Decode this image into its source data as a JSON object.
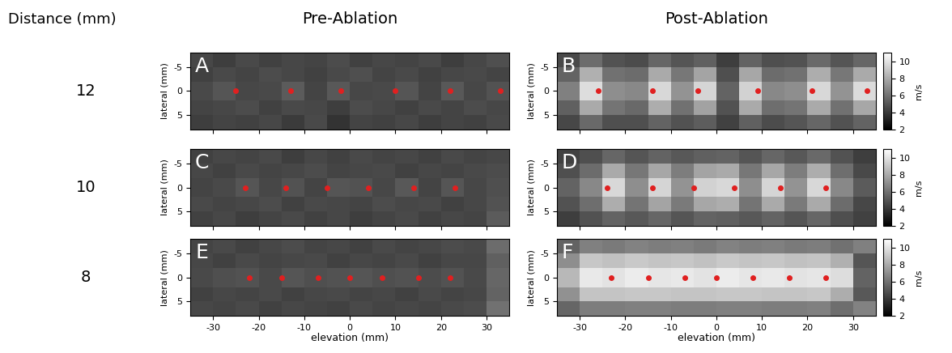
{
  "chart_data": {
    "type": "heatmap",
    "headers": {
      "distance": "Distance (mm)",
      "pre": "Pre-Ablation",
      "post": "Post-Ablation"
    },
    "xlim": [
      -35,
      35
    ],
    "ylim": [
      8,
      -8
    ],
    "xticks": [
      -30,
      -20,
      -10,
      0,
      10,
      20,
      30
    ],
    "yticks": [
      -5,
      0,
      5
    ],
    "ylabel": "lateral (mm)",
    "x_edges": [
      -35,
      -30,
      -25,
      -20,
      -15,
      -10,
      -5,
      0,
      5,
      10,
      15,
      20,
      25,
      30,
      35
    ],
    "y_edges": [
      -8,
      -5,
      -2,
      2,
      5,
      8
    ],
    "colorbar": {
      "range": [
        2,
        11
      ],
      "ticks": [
        2,
        4,
        6,
        8,
        10
      ],
      "label": "m/s"
    },
    "rows": [
      {
        "distance": 12,
        "panels": [
          {
            "letter": "A",
            "tick_labels": "y",
            "colorbar": false,
            "markers": {
              "color": "#e02020",
              "x": [
                -25,
                -13,
                -2,
                10,
                22,
                33
              ],
              "y": [
                0,
                0,
                0,
                0,
                0,
                0
              ]
            },
            "cells": [
              [
                4.5,
                4.2,
                4.6,
                4.3,
                4.5,
                4.4,
                4.7,
                4.3,
                4.5,
                4.4,
                4.6,
                4.2,
                4.5,
                4.8
              ],
              [
                4.3,
                4.6,
                4.4,
                4.7,
                4.5,
                4.3,
                4.6,
                4.8,
                4.4,
                4.6,
                4.3,
                4.5,
                4.6,
                4.4
              ],
              [
                4.6,
                5.0,
                4.5,
                4.6,
                5.2,
                4.4,
                5.1,
                4.5,
                4.6,
                5.0,
                4.4,
                5.1,
                4.5,
                4.9
              ],
              [
                4.4,
                4.5,
                4.7,
                4.3,
                4.6,
                4.5,
                4.2,
                4.7,
                4.5,
                4.3,
                4.6,
                4.4,
                4.7,
                4.5
              ],
              [
                4.2,
                4.4,
                4.3,
                4.5,
                4.1,
                4.6,
                3.8,
                4.4,
                4.3,
                4.5,
                4.2,
                4.4,
                4.3,
                4.6
              ]
            ]
          },
          {
            "letter": "B",
            "tick_labels": "y",
            "colorbar": true,
            "markers": {
              "color": "#e02020",
              "x": [
                -26,
                -14,
                -4,
                9,
                21,
                33
              ],
              "y": [
                0,
                0,
                0,
                0,
                0,
                0
              ]
            },
            "cells": [
              [
                4.6,
                5.8,
                4.9,
                4.7,
                5.6,
                5.0,
                5.4,
                4.2,
                5.5,
                4.8,
                4.9,
                5.7,
                5.0,
                5.6
              ],
              [
                5.5,
                8.2,
                6.0,
                5.8,
                8.0,
                6.2,
                7.8,
                4.8,
                7.9,
                5.8,
                6.0,
                8.1,
                6.2,
                8.0
              ],
              [
                6.5,
                9.8,
                7.0,
                6.8,
                9.6,
                7.2,
                9.5,
                5.5,
                9.4,
                6.8,
                7.0,
                9.6,
                7.2,
                9.7
              ],
              [
                5.4,
                8.0,
                6.1,
                5.7,
                8.1,
                6.0,
                7.7,
                4.9,
                8.0,
                5.9,
                6.1,
                8.0,
                6.0,
                7.9
              ],
              [
                4.5,
                5.7,
                4.8,
                4.8,
                5.5,
                4.9,
                5.3,
                4.3,
                5.4,
                4.7,
                5.0,
                5.6,
                4.9,
                5.5
              ]
            ]
          }
        ]
      },
      {
        "distance": 10,
        "panels": [
          {
            "letter": "C",
            "tick_labels": "y",
            "colorbar": false,
            "markers": {
              "color": "#e02020",
              "x": [
                -23,
                -14,
                -5,
                4,
                14,
                23
              ],
              "y": [
                0,
                0,
                0,
                0,
                0,
                0
              ]
            },
            "cells": [
              [
                4.3,
                4.5,
                4.4,
                4.6,
                4.2,
                4.5,
                4.3,
                4.6,
                4.4,
                4.5,
                4.3,
                4.6,
                4.4,
                4.5
              ],
              [
                4.5,
                4.3,
                4.6,
                4.4,
                4.5,
                4.7,
                4.4,
                4.5,
                4.6,
                4.3,
                4.5,
                4.4,
                4.6,
                4.7
              ],
              [
                4.4,
                4.6,
                5.0,
                4.5,
                4.9,
                4.4,
                5.0,
                4.9,
                4.5,
                5.1,
                4.4,
                5.0,
                4.5,
                4.8
              ],
              [
                4.6,
                4.4,
                4.5,
                4.7,
                4.3,
                4.6,
                4.5,
                4.4,
                4.7,
                4.5,
                4.6,
                4.3,
                4.5,
                4.9
              ],
              [
                4.3,
                4.5,
                4.2,
                4.4,
                4.6,
                4.3,
                4.5,
                4.2,
                4.4,
                4.6,
                4.3,
                4.5,
                4.4,
                5.2
              ]
            ]
          },
          {
            "letter": "D",
            "tick_labels": "y",
            "colorbar": true,
            "markers": {
              "color": "#e02020",
              "x": [
                -24,
                -14,
                -5,
                4,
                14,
                24
              ],
              "y": [
                0,
                0,
                0,
                0,
                0,
                0
              ]
            },
            "cells": [
              [
                4.3,
                4.8,
                5.6,
                5.0,
                5.5,
                5.1,
                5.4,
                5.5,
                5.0,
                5.6,
                5.1,
                5.7,
                4.9,
                4.2
              ],
              [
                4.8,
                5.8,
                8.0,
                6.2,
                7.9,
                6.4,
                7.8,
                8.0,
                6.2,
                7.9,
                6.4,
                8.1,
                5.9,
                4.6
              ],
              [
                5.5,
                6.8,
                9.6,
                7.0,
                9.5,
                7.2,
                9.4,
                9.6,
                7.0,
                9.5,
                7.2,
                9.6,
                6.8,
                5.2
              ],
              [
                4.9,
                5.9,
                8.1,
                6.1,
                7.8,
                6.3,
                7.9,
                8.1,
                6.1,
                8.0,
                6.3,
                8.0,
                5.8,
                4.5
              ],
              [
                4.2,
                4.9,
                5.5,
                5.1,
                5.6,
                5.0,
                5.5,
                5.4,
                5.1,
                5.5,
                5.0,
                5.6,
                4.8,
                4.3
              ]
            ]
          }
        ]
      },
      {
        "distance": 8,
        "panels": [
          {
            "letter": "E",
            "xlabel": "elevation (mm)",
            "colorbar": false,
            "markers": {
              "color": "#e02020",
              "x": [
                -22,
                -15,
                -7,
                0,
                7,
                15,
                22
              ],
              "y": [
                0,
                0,
                0,
                0,
                0,
                0,
                0
              ]
            },
            "cells": [
              [
                4.4,
                4.6,
                4.3,
                4.5,
                4.7,
                4.4,
                4.5,
                4.3,
                4.6,
                4.4,
                4.5,
                4.7,
                4.6,
                5.8
              ],
              [
                4.5,
                4.3,
                4.6,
                4.4,
                4.5,
                4.6,
                4.3,
                4.5,
                4.4,
                4.6,
                4.3,
                4.5,
                4.5,
                5.4
              ],
              [
                4.6,
                4.8,
                4.9,
                4.6,
                5.0,
                4.8,
                4.9,
                5.0,
                4.8,
                4.9,
                4.7,
                4.9,
                4.6,
                5.6
              ],
              [
                4.3,
                4.5,
                4.4,
                4.6,
                4.3,
                4.5,
                4.6,
                4.4,
                4.5,
                4.3,
                4.6,
                4.4,
                4.5,
                5.5
              ],
              [
                4.5,
                4.4,
                4.6,
                4.3,
                4.5,
                4.4,
                4.3,
                4.6,
                4.4,
                4.5,
                4.4,
                4.6,
                4.7,
                6.0
              ]
            ]
          },
          {
            "letter": "F",
            "xlabel": "elevation (mm)",
            "colorbar": true,
            "markers": {
              "color": "#e02020",
              "x": [
                -23,
                -15,
                -7,
                0,
                8,
                16,
                24
              ],
              "y": [
                0,
                0,
                0,
                0,
                0,
                0,
                0
              ]
            },
            "cells": [
              [
                5.5,
                6.5,
                6.3,
                6.6,
                6.4,
                6.5,
                6.3,
                6.6,
                6.4,
                6.5,
                6.3,
                6.4,
                6.0,
                6.5
              ],
              [
                7.0,
                9.0,
                8.8,
                9.1,
                8.9,
                9.0,
                8.8,
                9.1,
                8.9,
                9.0,
                8.8,
                8.9,
                8.2,
                5.0
              ],
              [
                8.5,
                10.2,
                10.0,
                10.3,
                10.1,
                10.2,
                10.0,
                10.3,
                10.1,
                10.2,
                10.0,
                10.1,
                9.8,
                5.5
              ],
              [
                7.1,
                8.9,
                8.9,
                9.0,
                9.0,
                8.9,
                8.9,
                9.0,
                9.0,
                8.9,
                8.9,
                9.0,
                8.1,
                5.1
              ],
              [
                5.6,
                6.4,
                6.4,
                6.5,
                6.5,
                6.4,
                6.4,
                6.5,
                6.5,
                6.4,
                6.4,
                6.5,
                5.9,
                6.6
              ]
            ]
          }
        ]
      }
    ]
  }
}
